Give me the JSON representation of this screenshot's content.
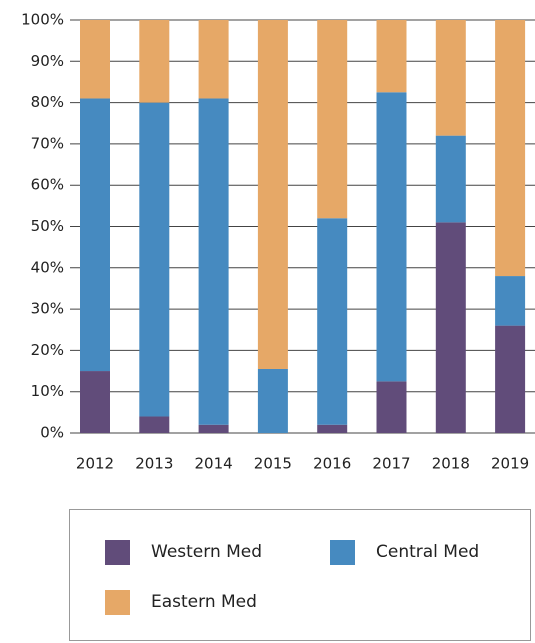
{
  "chart_data": {
    "type": "stacked_bar",
    "categories": [
      "2012",
      "2013",
      "2014",
      "2015",
      "2016",
      "2017",
      "2018",
      "2019"
    ],
    "series": [
      {
        "name": "Western Med",
        "color": "#614c7a",
        "values": [
          15,
          4,
          2,
          0,
          2,
          12.5,
          51,
          26
        ]
      },
      {
        "name": "Central Med",
        "color": "#468ac0",
        "values": [
          66,
          76,
          79,
          15.5,
          50,
          70,
          21,
          12
        ]
      },
      {
        "name": "Eastern Med",
        "color": "#e6a867",
        "values": [
          19,
          20,
          19,
          84.5,
          48,
          17.5,
          28,
          62
        ]
      }
    ],
    "ylim": [
      0,
      100
    ],
    "yticks": [
      {
        "value": 0,
        "label": "0%"
      },
      {
        "value": 10,
        "label": "10%"
      },
      {
        "value": 20,
        "label": "20%"
      },
      {
        "value": 30,
        "label": "30%"
      },
      {
        "value": 40,
        "label": "40%"
      },
      {
        "value": 50,
        "label": "50%"
      },
      {
        "value": 60,
        "label": "60%"
      },
      {
        "value": 70,
        "label": "70%"
      },
      {
        "value": 80,
        "label": "80%"
      },
      {
        "value": 90,
        "label": "90%"
      },
      {
        "value": 100,
        "label": "100%"
      }
    ],
    "grid": true
  }
}
